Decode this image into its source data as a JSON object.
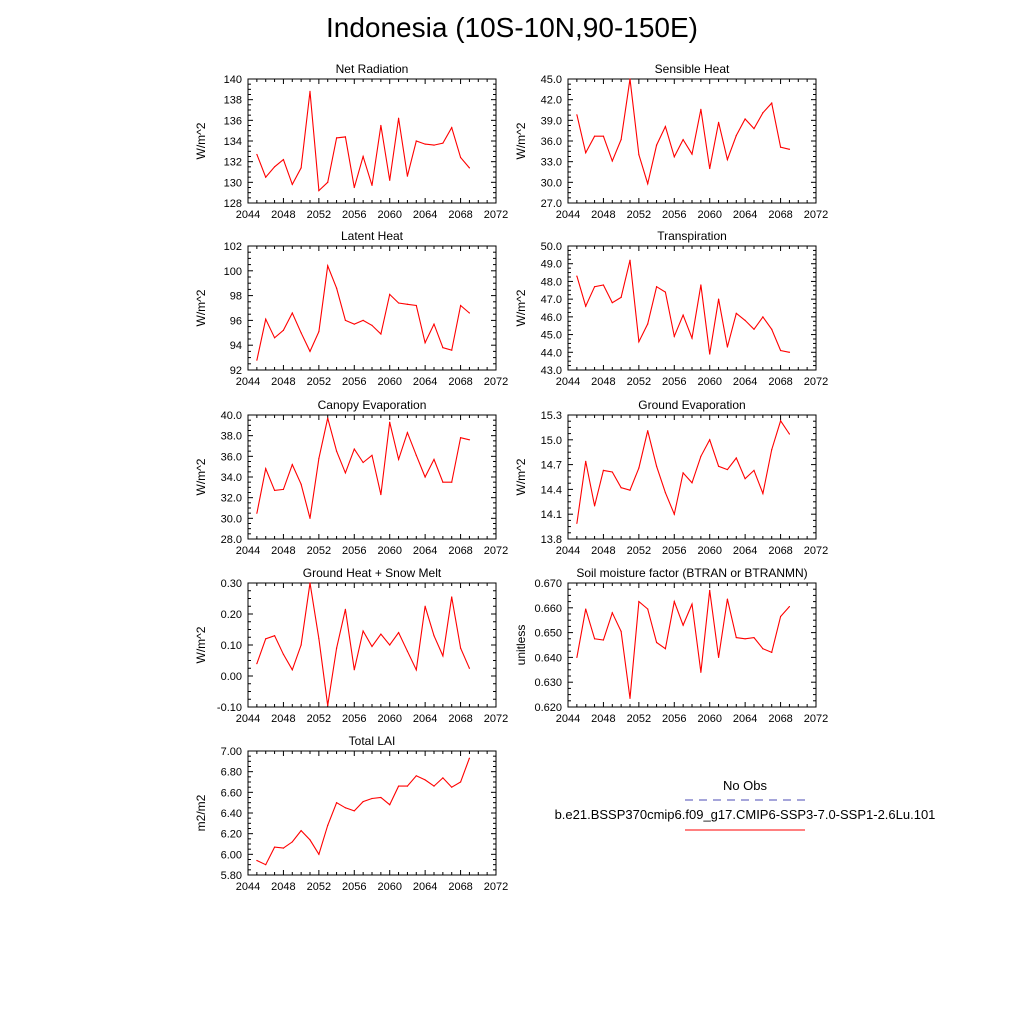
{
  "figure": {
    "title": "Indonesia (10S-10N,90-150E)"
  },
  "legend": {
    "no_obs_label": "No Obs",
    "model_label": "b.e21.BSSP370cmip6.f09_g17.CMIP6-SSP3-7.0-SSP1-2.6Lu.101",
    "no_obs_color": "#4b4bb4",
    "model_color": "#ff0000"
  },
  "chart_data": [
    {
      "type": "line",
      "title": "Net Radiation",
      "ylabel": "W/m^2",
      "xlim": [
        2044,
        2072
      ],
      "ylim": [
        128,
        140
      ],
      "xticks": [
        2044,
        2048,
        2052,
        2056,
        2060,
        2064,
        2068,
        2072
      ],
      "xtick_labels": [
        "2044",
        "2048",
        "2052",
        "2056",
        "2060",
        "2064",
        "2068",
        "2072"
      ],
      "yticks": [
        128,
        130,
        132,
        134,
        136,
        138,
        140
      ],
      "ytick_labels": [
        "128",
        "130",
        "132",
        "134",
        "136",
        "138",
        "140"
      ],
      "x": [
        2045,
        2046,
        2047,
        2048,
        2049,
        2050,
        2051,
        2052,
        2053,
        2054,
        2055,
        2056,
        2057,
        2058,
        2059,
        2060,
        2061,
        2062,
        2063,
        2064,
        2065,
        2066,
        2067,
        2068,
        2069
      ],
      "values": [
        132.7,
        130.5,
        131.5,
        132.2,
        129.8,
        131.4,
        138.8,
        129.2,
        130.0,
        134.3,
        134.4,
        129.5,
        132.5,
        129.7,
        135.5,
        130.2,
        136.2,
        130.6,
        134.0,
        133.7,
        133.6,
        133.8,
        135.3,
        132.4,
        131.4
      ],
      "color": "#ff0000"
    },
    {
      "type": "line",
      "title": "Sensible Heat",
      "ylabel": "W/m^2",
      "xlim": [
        2044,
        2072
      ],
      "ylim": [
        27,
        45
      ],
      "xticks": [
        2044,
        2048,
        2052,
        2056,
        2060,
        2064,
        2068,
        2072
      ],
      "xtick_labels": [
        "2044",
        "2048",
        "2052",
        "2056",
        "2060",
        "2064",
        "2068",
        "2072"
      ],
      "yticks": [
        27,
        30,
        33,
        36,
        39,
        42,
        45
      ],
      "ytick_labels": [
        "27.0",
        "30.0",
        "33.0",
        "36.0",
        "39.0",
        "42.0",
        "45.0"
      ],
      "x": [
        2045,
        2046,
        2047,
        2048,
        2049,
        2050,
        2051,
        2052,
        2053,
        2054,
        2055,
        2056,
        2057,
        2058,
        2059,
        2060,
        2061,
        2062,
        2063,
        2064,
        2065,
        2066,
        2067,
        2068,
        2069
      ],
      "values": [
        39.8,
        34.3,
        36.7,
        36.7,
        33.1,
        36.2,
        45.0,
        34.0,
        29.8,
        35.4,
        38.1,
        33.7,
        36.2,
        34.1,
        40.6,
        32.0,
        38.7,
        33.3,
        36.8,
        39.2,
        37.8,
        40.1,
        41.5,
        35.1,
        34.8
      ],
      "color": "#ff0000"
    },
    {
      "type": "line",
      "title": "Latent Heat",
      "ylabel": "W/m^2",
      "xlim": [
        2044,
        2072
      ],
      "ylim": [
        92,
        102
      ],
      "xticks": [
        2044,
        2048,
        2052,
        2056,
        2060,
        2064,
        2068,
        2072
      ],
      "xtick_labels": [
        "2044",
        "2048",
        "2052",
        "2056",
        "2060",
        "2064",
        "2068",
        "2072"
      ],
      "yticks": [
        92,
        94,
        96,
        98,
        100,
        102
      ],
      "ytick_labels": [
        "92",
        "94",
        "96",
        "98",
        "100",
        "102"
      ],
      "x": [
        2045,
        2046,
        2047,
        2048,
        2049,
        2050,
        2051,
        2052,
        2053,
        2054,
        2055,
        2056,
        2057,
        2058,
        2059,
        2060,
        2061,
        2062,
        2063,
        2064,
        2065,
        2066,
        2067,
        2068,
        2069
      ],
      "values": [
        92.8,
        96.1,
        94.6,
        95.2,
        96.6,
        95.0,
        93.5,
        95.1,
        100.4,
        98.6,
        96.0,
        95.7,
        96.0,
        95.6,
        94.9,
        98.1,
        97.4,
        97.3,
        97.2,
        94.2,
        95.7,
        93.8,
        93.6,
        97.2,
        96.6
      ],
      "color": "#ff0000"
    },
    {
      "type": "line",
      "title": "Transpiration",
      "ylabel": "W/m^2",
      "xlim": [
        2044,
        2072
      ],
      "ylim": [
        43,
        50
      ],
      "xticks": [
        2044,
        2048,
        2052,
        2056,
        2060,
        2064,
        2068,
        2072
      ],
      "xtick_labels": [
        "2044",
        "2048",
        "2052",
        "2056",
        "2060",
        "2064",
        "2068",
        "2072"
      ],
      "yticks": [
        43,
        44,
        45,
        46,
        47,
        48,
        49,
        50
      ],
      "ytick_labels": [
        "43.0",
        "44.0",
        "45.0",
        "46.0",
        "47.0",
        "48.0",
        "49.0",
        "50.0"
      ],
      "x": [
        2045,
        2046,
        2047,
        2048,
        2049,
        2050,
        2051,
        2052,
        2053,
        2054,
        2055,
        2056,
        2057,
        2058,
        2059,
        2060,
        2061,
        2062,
        2063,
        2064,
        2065,
        2066,
        2067,
        2068,
        2069
      ],
      "values": [
        48.3,
        46.6,
        47.7,
        47.8,
        46.8,
        47.1,
        49.2,
        44.6,
        45.6,
        47.7,
        47.4,
        44.9,
        46.1,
        44.8,
        47.8,
        43.9,
        47.0,
        44.3,
        46.2,
        45.8,
        45.3,
        46.0,
        45.3,
        44.1,
        44.0
      ],
      "color": "#ff0000"
    },
    {
      "type": "line",
      "title": "Canopy Evaporation",
      "ylabel": "W/m^2",
      "xlim": [
        2044,
        2072
      ],
      "ylim": [
        28,
        40
      ],
      "xticks": [
        2044,
        2048,
        2052,
        2056,
        2060,
        2064,
        2068,
        2072
      ],
      "xtick_labels": [
        "2044",
        "2048",
        "2052",
        "2056",
        "2060",
        "2064",
        "2068",
        "2072"
      ],
      "yticks": [
        28,
        30,
        32,
        34,
        36,
        38,
        40
      ],
      "ytick_labels": [
        "28.0",
        "30.0",
        "32.0",
        "34.0",
        "36.0",
        "38.0",
        "40.0"
      ],
      "x": [
        2045,
        2046,
        2047,
        2048,
        2049,
        2050,
        2051,
        2052,
        2053,
        2054,
        2055,
        2056,
        2057,
        2058,
        2059,
        2060,
        2061,
        2062,
        2063,
        2064,
        2065,
        2066,
        2067,
        2068,
        2069
      ],
      "values": [
        30.5,
        34.8,
        32.7,
        32.8,
        35.2,
        33.3,
        30.0,
        35.8,
        39.7,
        36.5,
        34.4,
        36.7,
        35.4,
        36.1,
        32.3,
        39.3,
        35.7,
        38.3,
        36.1,
        34.0,
        35.7,
        33.5,
        33.5,
        37.8,
        37.6
      ],
      "color": "#ff0000"
    },
    {
      "type": "line",
      "title": "Ground Evaporation",
      "ylabel": "W/m^2",
      "xlim": [
        2044,
        2072
      ],
      "ylim": [
        13.8,
        15.3
      ],
      "xticks": [
        2044,
        2048,
        2052,
        2056,
        2060,
        2064,
        2068,
        2072
      ],
      "xtick_labels": [
        "2044",
        "2048",
        "2052",
        "2056",
        "2060",
        "2064",
        "2068",
        "2072"
      ],
      "yticks": [
        13.8,
        14.1,
        14.4,
        14.7,
        15.0,
        15.3
      ],
      "ytick_labels": [
        "13.8",
        "14.1",
        "14.4",
        "14.7",
        "15.0",
        "15.3"
      ],
      "x": [
        2045,
        2046,
        2047,
        2048,
        2049,
        2050,
        2051,
        2052,
        2053,
        2054,
        2055,
        2056,
        2057,
        2058,
        2059,
        2060,
        2061,
        2062,
        2063,
        2064,
        2065,
        2066,
        2067,
        2068,
        2069
      ],
      "values": [
        13.99,
        14.74,
        14.2,
        14.63,
        14.61,
        14.42,
        14.39,
        14.66,
        15.11,
        14.68,
        14.36,
        14.1,
        14.6,
        14.48,
        14.8,
        15.0,
        14.68,
        14.64,
        14.78,
        14.53,
        14.63,
        14.35,
        14.88,
        15.23,
        15.07
      ],
      "color": "#ff0000"
    },
    {
      "type": "line",
      "title": "Ground Heat + Snow Melt",
      "ylabel": "W/m^2",
      "xlim": [
        2044,
        2072
      ],
      "ylim": [
        -0.1,
        0.3
      ],
      "xticks": [
        2044,
        2048,
        2052,
        2056,
        2060,
        2064,
        2068,
        2072
      ],
      "xtick_labels": [
        "2044",
        "2048",
        "2052",
        "2056",
        "2060",
        "2064",
        "2068",
        "2072"
      ],
      "yticks": [
        -0.1,
        0.0,
        0.1,
        0.2,
        0.3
      ],
      "ytick_labels": [
        "-0.10",
        "0.00",
        "0.10",
        "0.20",
        "0.30"
      ],
      "x": [
        2045,
        2046,
        2047,
        2048,
        2049,
        2050,
        2051,
        2052,
        2053,
        2054,
        2055,
        2056,
        2057,
        2058,
        2059,
        2060,
        2061,
        2062,
        2063,
        2064,
        2065,
        2066,
        2067,
        2068,
        2069
      ],
      "values": [
        0.04,
        0.12,
        0.13,
        0.07,
        0.02,
        0.1,
        0.3,
        0.12,
        -0.095,
        0.09,
        0.215,
        0.02,
        0.145,
        0.095,
        0.135,
        0.1,
        0.14,
        0.08,
        0.02,
        0.225,
        0.13,
        0.065,
        0.255,
        0.09,
        0.025
      ],
      "color": "#ff0000"
    },
    {
      "type": "line",
      "title": "Soil moisture factor (BTRAN or BTRANMN)",
      "ylabel": "unitless",
      "xlim": [
        2044,
        2072
      ],
      "ylim": [
        0.62,
        0.67
      ],
      "xticks": [
        2044,
        2048,
        2052,
        2056,
        2060,
        2064,
        2068,
        2072
      ],
      "xtick_labels": [
        "2044",
        "2048",
        "2052",
        "2056",
        "2060",
        "2064",
        "2068",
        "2072"
      ],
      "yticks": [
        0.62,
        0.63,
        0.64,
        0.65,
        0.66,
        0.67
      ],
      "ytick_labels": [
        "0.620",
        "0.630",
        "0.640",
        "0.650",
        "0.660",
        "0.670"
      ],
      "x": [
        2045,
        2046,
        2047,
        2048,
        2049,
        2050,
        2051,
        2052,
        2053,
        2054,
        2055,
        2056,
        2057,
        2058,
        2059,
        2060,
        2061,
        2062,
        2063,
        2064,
        2065,
        2066,
        2067,
        2068,
        2069
      ],
      "values": [
        0.64,
        0.6595,
        0.6475,
        0.647,
        0.658,
        0.6505,
        0.6235,
        0.6625,
        0.6595,
        0.646,
        0.6435,
        0.6625,
        0.653,
        0.6615,
        0.634,
        0.667,
        0.64,
        0.6635,
        0.648,
        0.6475,
        0.648,
        0.6435,
        0.642,
        0.6565,
        0.6605
      ],
      "color": "#ff0000"
    },
    {
      "type": "line",
      "title": "Total LAI",
      "ylabel": "m2/m2",
      "xlim": [
        2044,
        2072
      ],
      "ylim": [
        5.8,
        7.0
      ],
      "xticks": [
        2044,
        2048,
        2052,
        2056,
        2060,
        2064,
        2068,
        2072
      ],
      "xtick_labels": [
        "2044",
        "2048",
        "2052",
        "2056",
        "2060",
        "2064",
        "2068",
        "2072"
      ],
      "yticks": [
        5.8,
        6.0,
        6.2,
        6.4,
        6.6,
        6.8,
        7.0
      ],
      "ytick_labels": [
        "5.80",
        "6.00",
        "6.20",
        "6.40",
        "6.60",
        "6.80",
        "7.00"
      ],
      "x": [
        2045,
        2046,
        2047,
        2048,
        2049,
        2050,
        2051,
        2052,
        2053,
        2054,
        2055,
        2056,
        2057,
        2058,
        2059,
        2060,
        2061,
        2062,
        2063,
        2064,
        2065,
        2066,
        2067,
        2068,
        2069
      ],
      "values": [
        5.94,
        5.9,
        6.07,
        6.06,
        6.12,
        6.23,
        6.14,
        6.0,
        6.28,
        6.5,
        6.45,
        6.42,
        6.51,
        6.54,
        6.55,
        6.48,
        6.66,
        6.66,
        6.76,
        6.72,
        6.66,
        6.74,
        6.65,
        6.7,
        6.93
      ],
      "color": "#ff0000"
    }
  ]
}
